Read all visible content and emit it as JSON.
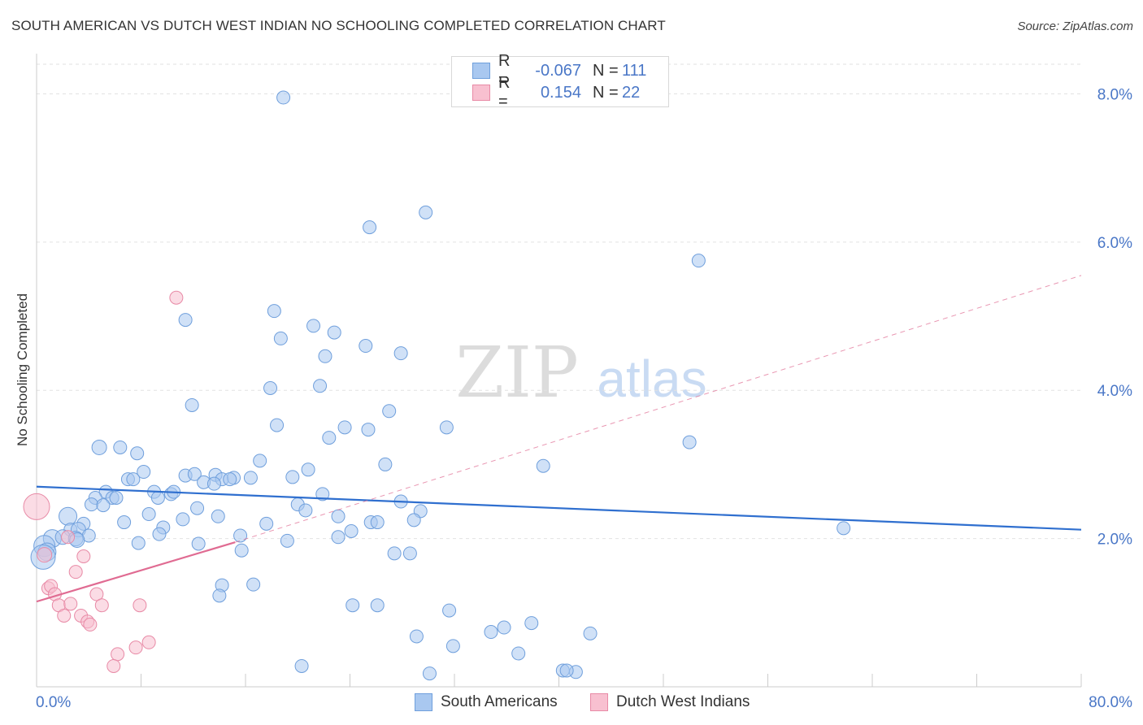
{
  "title": "SOUTH AMERICAN VS DUTCH WEST INDIAN NO SCHOOLING COMPLETED CORRELATION CHART",
  "source": "Source: ZipAtlas.com",
  "watermark": {
    "zip": "ZIP",
    "atlas": "atlas"
  },
  "legend": {
    "rows": [
      {
        "r_label": "R =",
        "r_value": "-0.067",
        "n_label": "N =",
        "n_value": "111",
        "color": "#a9c8f0",
        "border": "#6f9fdc"
      },
      {
        "r_label": "R =",
        "r_value": "0.154",
        "n_label": "N =",
        "n_value": "22",
        "color": "#f8c0d0",
        "border": "#e88aa6"
      }
    ]
  },
  "bottom_legend": [
    "South Americans",
    "Dutch West Indians"
  ],
  "chart_data": {
    "type": "scatter",
    "title": "SOUTH AMERICAN VS DUTCH WEST INDIAN NO SCHOOLING COMPLETED CORRELATION CHART",
    "xlabel": "",
    "ylabel": "No Schooling Completed",
    "xlim": [
      0,
      80
    ],
    "ylim": [
      0,
      8.4
    ],
    "x_tick_labels": [
      "0.0%",
      "80.0%"
    ],
    "y_ticks": [
      2.0,
      4.0,
      6.0,
      8.0
    ],
    "y_tick_labels": [
      "2.0%",
      "4.0%",
      "6.0%",
      "8.0%"
    ],
    "grid": true,
    "legend_position": "top-center",
    "colors": {
      "blue_fill": "#a9c8f0",
      "blue_stroke": "#6f9fdc",
      "blue_line": "#2f6fcf",
      "pink_fill": "#f8c0d0",
      "pink_stroke": "#e88aa6",
      "pink_line": "#e06b92"
    },
    "series": [
      {
        "name": "South Americans",
        "color": "#a9c8f0",
        "trend": {
          "x": [
            0,
            80
          ],
          "y": [
            2.7,
            2.12
          ]
        },
        "points": [
          {
            "x": 18.9,
            "y": 7.95,
            "r": 8
          },
          {
            "x": 29.8,
            "y": 6.4,
            "r": 8
          },
          {
            "x": 25.5,
            "y": 6.2,
            "r": 8
          },
          {
            "x": 50.7,
            "y": 5.75,
            "r": 8
          },
          {
            "x": 11.4,
            "y": 4.95,
            "r": 8
          },
          {
            "x": 18.2,
            "y": 5.07,
            "r": 8
          },
          {
            "x": 21.2,
            "y": 4.87,
            "r": 8
          },
          {
            "x": 22.8,
            "y": 4.78,
            "r": 8
          },
          {
            "x": 18.7,
            "y": 4.7,
            "r": 8
          },
          {
            "x": 25.2,
            "y": 4.6,
            "r": 8
          },
          {
            "x": 27.9,
            "y": 4.5,
            "r": 8
          },
          {
            "x": 22.1,
            "y": 4.46,
            "r": 8
          },
          {
            "x": 17.9,
            "y": 4.03,
            "r": 8
          },
          {
            "x": 21.7,
            "y": 4.06,
            "r": 8
          },
          {
            "x": 11.9,
            "y": 3.8,
            "r": 8
          },
          {
            "x": 27.0,
            "y": 3.72,
            "r": 8
          },
          {
            "x": 18.4,
            "y": 3.53,
            "r": 8
          },
          {
            "x": 23.6,
            "y": 3.5,
            "r": 8
          },
          {
            "x": 25.4,
            "y": 3.47,
            "r": 8
          },
          {
            "x": 31.4,
            "y": 3.5,
            "r": 8
          },
          {
            "x": 22.4,
            "y": 3.36,
            "r": 8
          },
          {
            "x": 50.0,
            "y": 3.3,
            "r": 8
          },
          {
            "x": 4.8,
            "y": 3.23,
            "r": 9
          },
          {
            "x": 6.4,
            "y": 3.23,
            "r": 8
          },
          {
            "x": 7.7,
            "y": 3.15,
            "r": 8
          },
          {
            "x": 17.1,
            "y": 3.05,
            "r": 8
          },
          {
            "x": 26.7,
            "y": 3.0,
            "r": 8
          },
          {
            "x": 38.8,
            "y": 2.98,
            "r": 8
          },
          {
            "x": 20.8,
            "y": 2.93,
            "r": 8
          },
          {
            "x": 8.2,
            "y": 2.9,
            "r": 8
          },
          {
            "x": 11.4,
            "y": 2.85,
            "r": 8
          },
          {
            "x": 12.1,
            "y": 2.87,
            "r": 8
          },
          {
            "x": 13.7,
            "y": 2.86,
            "r": 8
          },
          {
            "x": 14.2,
            "y": 2.8,
            "r": 8
          },
          {
            "x": 16.4,
            "y": 2.82,
            "r": 8
          },
          {
            "x": 19.6,
            "y": 2.83,
            "r": 8
          },
          {
            "x": 7.0,
            "y": 2.8,
            "r": 8
          },
          {
            "x": 7.4,
            "y": 2.8,
            "r": 8
          },
          {
            "x": 12.8,
            "y": 2.76,
            "r": 8
          },
          {
            "x": 13.6,
            "y": 2.74,
            "r": 8
          },
          {
            "x": 15.1,
            "y": 2.82,
            "r": 8
          },
          {
            "x": 14.8,
            "y": 2.8,
            "r": 8
          },
          {
            "x": 5.3,
            "y": 2.63,
            "r": 8
          },
          {
            "x": 9.0,
            "y": 2.63,
            "r": 8
          },
          {
            "x": 10.3,
            "y": 2.6,
            "r": 8
          },
          {
            "x": 10.5,
            "y": 2.63,
            "r": 8
          },
          {
            "x": 9.3,
            "y": 2.55,
            "r": 8
          },
          {
            "x": 4.5,
            "y": 2.55,
            "r": 8
          },
          {
            "x": 5.8,
            "y": 2.55,
            "r": 8
          },
          {
            "x": 6.1,
            "y": 2.55,
            "r": 8
          },
          {
            "x": 21.9,
            "y": 2.6,
            "r": 8
          },
          {
            "x": 4.2,
            "y": 2.46,
            "r": 8
          },
          {
            "x": 5.1,
            "y": 2.45,
            "r": 8
          },
          {
            "x": 12.3,
            "y": 2.41,
            "r": 8
          },
          {
            "x": 20.0,
            "y": 2.46,
            "r": 8
          },
          {
            "x": 20.6,
            "y": 2.38,
            "r": 8
          },
          {
            "x": 27.9,
            "y": 2.5,
            "r": 8
          },
          {
            "x": 29.4,
            "y": 2.37,
            "r": 8
          },
          {
            "x": 8.6,
            "y": 2.33,
            "r": 8
          },
          {
            "x": 13.9,
            "y": 2.3,
            "r": 8
          },
          {
            "x": 2.4,
            "y": 2.3,
            "r": 11
          },
          {
            "x": 11.2,
            "y": 2.26,
            "r": 8
          },
          {
            "x": 23.1,
            "y": 2.3,
            "r": 8
          },
          {
            "x": 28.9,
            "y": 2.25,
            "r": 8
          },
          {
            "x": 6.7,
            "y": 2.22,
            "r": 8
          },
          {
            "x": 17.6,
            "y": 2.2,
            "r": 8
          },
          {
            "x": 25.6,
            "y": 2.22,
            "r": 8
          },
          {
            "x": 26.1,
            "y": 2.22,
            "r": 8
          },
          {
            "x": 3.6,
            "y": 2.2,
            "r": 8
          },
          {
            "x": 2.6,
            "y": 2.12,
            "r": 8
          },
          {
            "x": 3.2,
            "y": 2.12,
            "r": 9
          },
          {
            "x": 9.7,
            "y": 2.15,
            "r": 8
          },
          {
            "x": 24.1,
            "y": 2.1,
            "r": 8
          },
          {
            "x": 61.8,
            "y": 2.14,
            "r": 8
          },
          {
            "x": 1.2,
            "y": 2.0,
            "r": 11
          },
          {
            "x": 2.0,
            "y": 2.02,
            "r": 9
          },
          {
            "x": 3.0,
            "y": 2.0,
            "r": 9
          },
          {
            "x": 4.0,
            "y": 2.04,
            "r": 8
          },
          {
            "x": 9.4,
            "y": 2.06,
            "r": 8
          },
          {
            "x": 15.6,
            "y": 2.04,
            "r": 8
          },
          {
            "x": 23.1,
            "y": 2.02,
            "r": 8
          },
          {
            "x": 3.1,
            "y": 1.98,
            "r": 9
          },
          {
            "x": 7.8,
            "y": 1.94,
            "r": 8
          },
          {
            "x": 12.4,
            "y": 1.93,
            "r": 8
          },
          {
            "x": 19.2,
            "y": 1.97,
            "r": 8
          },
          {
            "x": 0.6,
            "y": 1.9,
            "r": 13
          },
          {
            "x": 0.8,
            "y": 1.82,
            "r": 11
          },
          {
            "x": 15.7,
            "y": 1.84,
            "r": 8
          },
          {
            "x": 27.4,
            "y": 1.8,
            "r": 8
          },
          {
            "x": 28.6,
            "y": 1.8,
            "r": 8
          },
          {
            "x": 0.5,
            "y": 1.75,
            "r": 15
          },
          {
            "x": 14.2,
            "y": 1.37,
            "r": 8
          },
          {
            "x": 16.6,
            "y": 1.38,
            "r": 8
          },
          {
            "x": 14.0,
            "y": 1.23,
            "r": 8
          },
          {
            "x": 24.2,
            "y": 1.1,
            "r": 8
          },
          {
            "x": 26.1,
            "y": 1.1,
            "r": 8
          },
          {
            "x": 31.6,
            "y": 1.03,
            "r": 8
          },
          {
            "x": 35.8,
            "y": 0.8,
            "r": 8
          },
          {
            "x": 37.9,
            "y": 0.86,
            "r": 8
          },
          {
            "x": 34.8,
            "y": 0.74,
            "r": 8
          },
          {
            "x": 42.4,
            "y": 0.72,
            "r": 8
          },
          {
            "x": 29.1,
            "y": 0.68,
            "r": 8
          },
          {
            "x": 31.9,
            "y": 0.55,
            "r": 8
          },
          {
            "x": 36.9,
            "y": 0.45,
            "r": 8
          },
          {
            "x": 20.3,
            "y": 0.28,
            "r": 8
          },
          {
            "x": 30.1,
            "y": 0.18,
            "r": 8
          },
          {
            "x": 40.3,
            "y": 0.22,
            "r": 8
          },
          {
            "x": 41.3,
            "y": 0.2,
            "r": 8
          },
          {
            "x": 40.6,
            "y": 0.22,
            "r": 8
          }
        ]
      },
      {
        "name": "Dutch West Indians",
        "color": "#f8c0d0",
        "trend": {
          "x": [
            0,
            15.2
          ],
          "y": [
            1.15,
            1.95
          ],
          "dashed_to": {
            "x": 80,
            "y": 5.55
          }
        },
        "points": [
          {
            "x": 10.7,
            "y": 5.25,
            "r": 8
          },
          {
            "x": 0.0,
            "y": 2.43,
            "r": 16
          },
          {
            "x": 2.4,
            "y": 2.02,
            "r": 8
          },
          {
            "x": 0.6,
            "y": 1.78,
            "r": 9
          },
          {
            "x": 3.6,
            "y": 1.76,
            "r": 8
          },
          {
            "x": 3.0,
            "y": 1.55,
            "r": 8
          },
          {
            "x": 0.9,
            "y": 1.33,
            "r": 8
          },
          {
            "x": 1.1,
            "y": 1.36,
            "r": 8
          },
          {
            "x": 1.4,
            "y": 1.25,
            "r": 8
          },
          {
            "x": 4.6,
            "y": 1.25,
            "r": 8
          },
          {
            "x": 1.7,
            "y": 1.1,
            "r": 8
          },
          {
            "x": 2.6,
            "y": 1.12,
            "r": 8
          },
          {
            "x": 5.0,
            "y": 1.1,
            "r": 8
          },
          {
            "x": 7.9,
            "y": 1.1,
            "r": 8
          },
          {
            "x": 2.1,
            "y": 0.96,
            "r": 8
          },
          {
            "x": 3.4,
            "y": 0.96,
            "r": 8
          },
          {
            "x": 3.9,
            "y": 0.88,
            "r": 8
          },
          {
            "x": 4.1,
            "y": 0.84,
            "r": 8
          },
          {
            "x": 8.6,
            "y": 0.6,
            "r": 8
          },
          {
            "x": 7.6,
            "y": 0.53,
            "r": 8
          },
          {
            "x": 6.2,
            "y": 0.44,
            "r": 8
          },
          {
            "x": 5.9,
            "y": 0.28,
            "r": 8
          }
        ]
      }
    ]
  }
}
